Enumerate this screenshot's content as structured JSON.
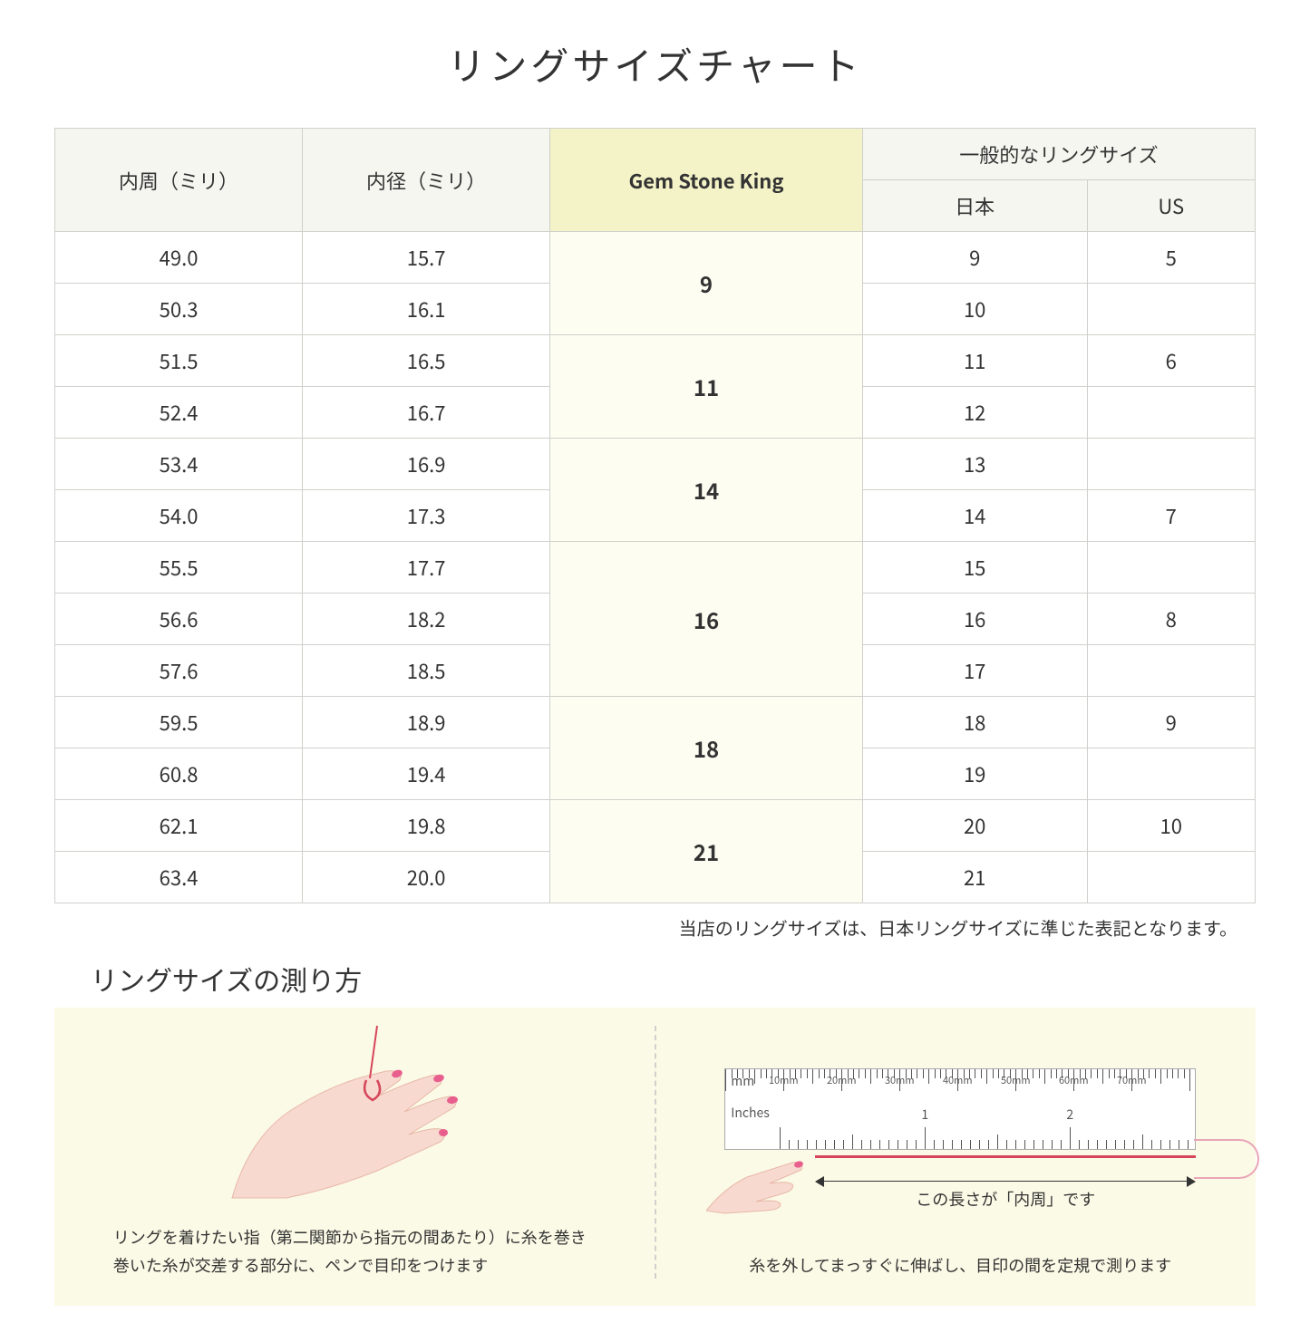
{
  "title": "リングサイズチャート",
  "table": {
    "headers": {
      "col1": "内周（ミリ）",
      "col2": "内径（ミリ）",
      "col3": "Gem Stone King",
      "col4_group": "一般的なリングサイズ",
      "col4a": "日本",
      "col4b": "US"
    },
    "rows": [
      {
        "c1": "49.0",
        "c2": "15.7",
        "gsk": "9",
        "jp": "9",
        "us": "5",
        "gsk_rowspan": 2
      },
      {
        "c1": "50.3",
        "c2": "16.1",
        "jp": "10",
        "us": ""
      },
      {
        "c1": "51.5",
        "c2": "16.5",
        "gsk": "11",
        "jp": "11",
        "us": "6",
        "gsk_rowspan": 2
      },
      {
        "c1": "52.4",
        "c2": "16.7",
        "jp": "12",
        "us": ""
      },
      {
        "c1": "53.4",
        "c2": "16.9",
        "gsk": "14",
        "jp": "13",
        "us": "",
        "gsk_rowspan": 2
      },
      {
        "c1": "54.0",
        "c2": "17.3",
        "jp": "14",
        "us": "7"
      },
      {
        "c1": "55.5",
        "c2": "17.7",
        "gsk": "16",
        "jp": "15",
        "us": "",
        "gsk_rowspan": 3
      },
      {
        "c1": "56.6",
        "c2": "18.2",
        "jp": "16",
        "us": "8"
      },
      {
        "c1": "57.6",
        "c2": "18.5",
        "jp": "17",
        "us": ""
      },
      {
        "c1": "59.5",
        "c2": "18.9",
        "gsk": "18",
        "jp": "18",
        "us": "9",
        "gsk_rowspan": 2
      },
      {
        "c1": "60.8",
        "c2": "19.4",
        "jp": "19",
        "us": ""
      },
      {
        "c1": "62.1",
        "c2": "19.8",
        "gsk": "21",
        "jp": "20",
        "us": "10",
        "gsk_rowspan": 2
      },
      {
        "c1": "63.4",
        "c2": "20.0",
        "jp": "21",
        "us": ""
      }
    ]
  },
  "note": "当店のリングサイズは、日本リングサイズに準じた表記となります。",
  "subtitle": "リングサイズの測り方",
  "instructions": {
    "left_caption": "リングを着けたい指（第二関節から指元の間あたり）に糸を巻き\n巻いた糸が交差する部分に、ペンで目印をつけます",
    "right_arrow_label": "この長さが「内周」です",
    "right_caption": "糸を外してまっすぐに伸ばし、目印の間を定規で測ります",
    "ruler": {
      "mm_label": "mm",
      "in_label": "Inches",
      "mm_marks": [
        "10mm",
        "20mm",
        "30mm",
        "40mm",
        "50mm",
        "60mm",
        "70mm"
      ],
      "in_marks": [
        "1",
        "2"
      ]
    }
  },
  "colors": {
    "header_bg": "#f6f6f0",
    "gsk_header_bg": "#f4f3c8",
    "gsk_cell_bg": "#fdfdf2",
    "border": "#d0d0cc",
    "panel_bg": "#fbfae6",
    "skin": "#f7d9cf",
    "nail": "#e85f8e",
    "thread": "#d6455a",
    "thread_loop": "#e9a5b8"
  }
}
